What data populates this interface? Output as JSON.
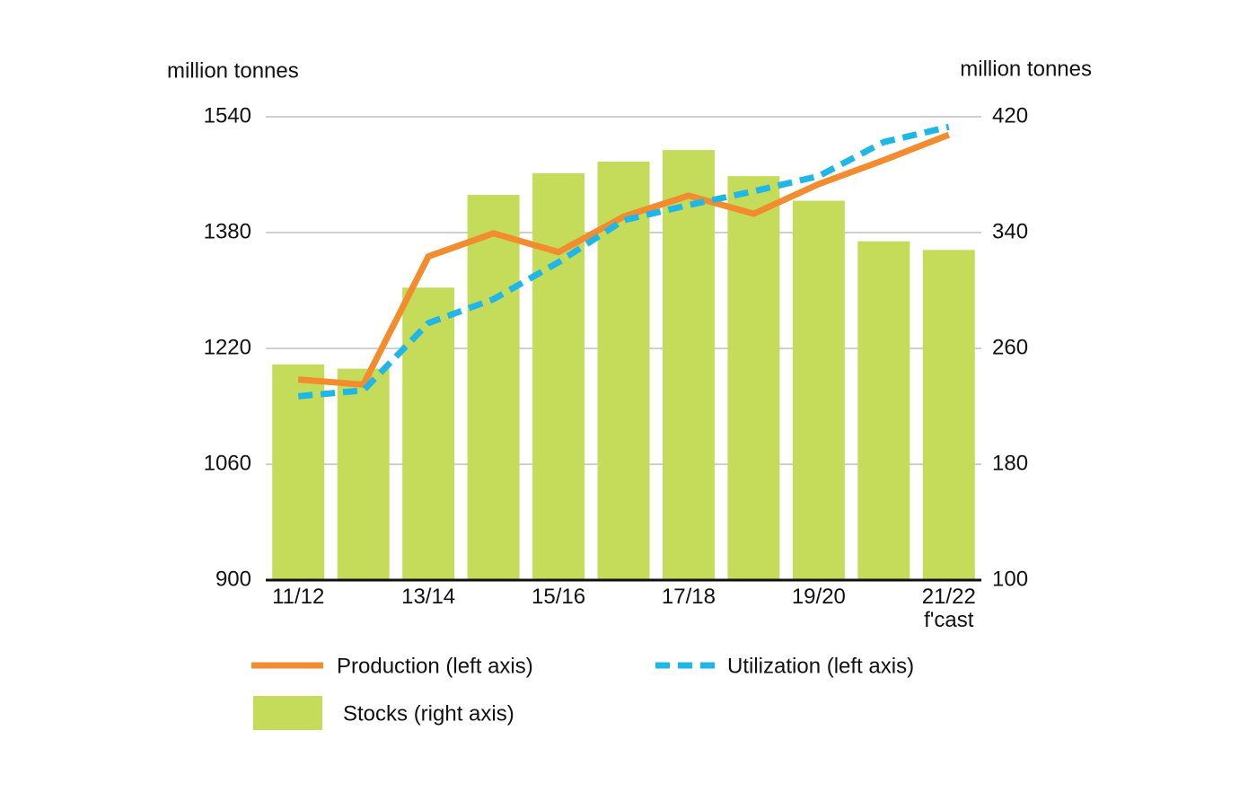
{
  "chart_data": {
    "type": "combo",
    "y_label": "million tonnes",
    "y2_label": "million tonnes",
    "categories": [
      "11/12",
      null,
      "13/14",
      null,
      "15/16",
      null,
      "17/18",
      null,
      "19/20",
      null,
      "21/22\nf'cast"
    ],
    "ylim": [
      900,
      1540
    ],
    "yticks": [
      900,
      1060,
      1220,
      1380,
      1540
    ],
    "y2lim": [
      100,
      420
    ],
    "y2ticks": [
      100,
      180,
      260,
      340,
      420
    ],
    "grid": true,
    "series": [
      {
        "name": "Production (left axis)",
        "type": "line",
        "style": "solid",
        "color": "#f28c2e",
        "axis": "y",
        "values": [
          1177,
          1170,
          1347,
          1379,
          1353,
          1402,
          1431,
          1406,
          1447,
          1480,
          1515
        ]
      },
      {
        "name": "Utilization (left axis)",
        "type": "line",
        "style": "dashed",
        "color": "#1fb6e8",
        "axis": "y",
        "values": [
          1154,
          1162,
          1255,
          1288,
          1339,
          1397,
          1418,
          1437,
          1458,
          1505,
          1526
        ]
      },
      {
        "name": "Stocks (right axis)",
        "type": "bar",
        "color": "#c5dc5a",
        "axis": "y2",
        "values": [
          249,
          246,
          302,
          366,
          381,
          389,
          397,
          379,
          362,
          334,
          328
        ]
      }
    ]
  }
}
